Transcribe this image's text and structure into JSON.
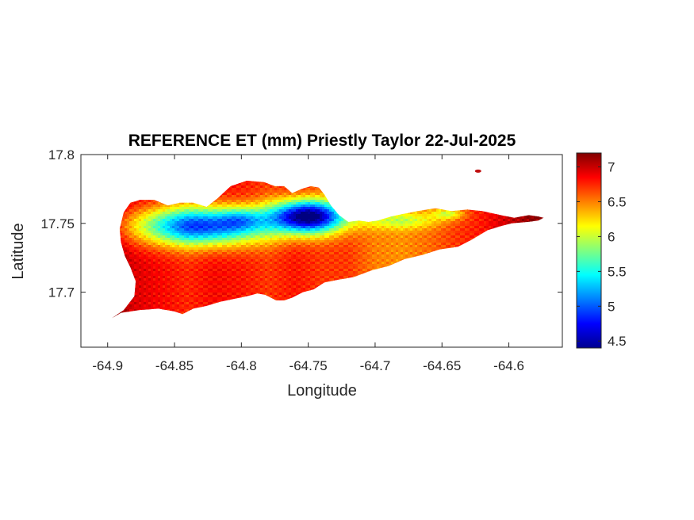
{
  "chart_data": {
    "type": "heatmap",
    "title": "REFERENCE ET (mm) Priestly Taylor 22-Jul-2025",
    "xlabel": "Longitude",
    "ylabel": "Latitude",
    "xlim": [
      -64.92,
      -64.56
    ],
    "ylim": [
      17.66,
      17.8
    ],
    "xticks": [
      -64.9,
      -64.85,
      -64.8,
      -64.75,
      -64.7,
      -64.65,
      -64.6
    ],
    "xtick_labels": [
      "-64.9",
      "-64.85",
      "-64.8",
      "-64.75",
      "-64.7",
      "-64.65",
      "-64.6"
    ],
    "yticks": [
      17.7,
      17.75,
      17.8
    ],
    "ytick_labels": [
      "17.7",
      "17.75",
      "17.8"
    ],
    "colorbar": {
      "colormap": "jet",
      "limits": [
        4.4,
        7.2
      ],
      "ticks": [
        4.5,
        5,
        5.5,
        6,
        6.5,
        7
      ],
      "tick_labels": [
        "4.5",
        "5",
        "5.5",
        "6",
        "6.5",
        "7"
      ]
    },
    "grid": false,
    "island_outline": [
      [
        -64.9,
        17.679
      ],
      [
        -64.888,
        17.687
      ],
      [
        -64.88,
        17.697
      ],
      [
        -64.879,
        17.708
      ],
      [
        -64.883,
        17.718
      ],
      [
        -64.887,
        17.726
      ],
      [
        -64.89,
        17.736
      ],
      [
        -64.891,
        17.746
      ],
      [
        -64.888,
        17.758
      ],
      [
        -64.883,
        17.765
      ],
      [
        -64.876,
        17.767
      ],
      [
        -64.865,
        17.767
      ],
      [
        -64.855,
        17.763
      ],
      [
        -64.846,
        17.765
      ],
      [
        -64.836,
        17.765
      ],
      [
        -64.826,
        17.762
      ],
      [
        -64.818,
        17.768
      ],
      [
        -64.808,
        17.777
      ],
      [
        -64.796,
        17.781
      ],
      [
        -64.783,
        17.78
      ],
      [
        -64.775,
        17.777
      ],
      [
        -64.768,
        17.777
      ],
      [
        -64.762,
        17.772
      ],
      [
        -64.755,
        17.775
      ],
      [
        -64.748,
        17.777
      ],
      [
        -64.742,
        17.776
      ],
      [
        -64.738,
        17.771
      ],
      [
        -64.733,
        17.763
      ],
      [
        -64.727,
        17.756
      ],
      [
        -64.72,
        17.751
      ],
      [
        -64.712,
        17.752
      ],
      [
        -64.705,
        17.751
      ],
      [
        -64.698,
        17.752
      ],
      [
        -64.688,
        17.755
      ],
      [
        -64.678,
        17.757
      ],
      [
        -64.668,
        17.759
      ],
      [
        -64.655,
        17.761
      ],
      [
        -64.643,
        17.759
      ],
      [
        -64.631,
        17.76
      ],
      [
        -64.62,
        17.759
      ],
      [
        -64.606,
        17.756
      ],
      [
        -64.596,
        17.754
      ],
      [
        -64.585,
        17.756
      ],
      [
        -64.578,
        17.755
      ],
      [
        -64.574,
        17.754
      ],
      [
        -64.578,
        17.752
      ],
      [
        -64.586,
        17.751
      ],
      [
        -64.598,
        17.75
      ],
      [
        -64.606,
        17.748
      ],
      [
        -64.616,
        17.745
      ],
      [
        -64.628,
        17.738
      ],
      [
        -64.638,
        17.733
      ],
      [
        -64.652,
        17.731
      ],
      [
        -64.665,
        17.727
      ],
      [
        -64.678,
        17.724
      ],
      [
        -64.69,
        17.719
      ],
      [
        -64.702,
        17.716
      ],
      [
        -64.716,
        17.711
      ],
      [
        -64.728,
        17.709
      ],
      [
        -64.738,
        17.707
      ],
      [
        -64.746,
        17.702
      ],
      [
        -64.754,
        17.7
      ],
      [
        -64.762,
        17.696
      ],
      [
        -64.768,
        17.694
      ],
      [
        -64.774,
        17.694
      ],
      [
        -64.782,
        17.698
      ],
      [
        -64.788,
        17.699
      ],
      [
        -64.796,
        17.697
      ],
      [
        -64.806,
        17.695
      ],
      [
        -64.816,
        17.693
      ],
      [
        -64.826,
        17.69
      ],
      [
        -64.836,
        17.688
      ],
      [
        -64.844,
        17.684
      ],
      [
        -64.85,
        17.686
      ],
      [
        -64.862,
        17.688
      ],
      [
        -64.876,
        17.687
      ],
      [
        -64.89,
        17.685
      ],
      [
        -64.897,
        17.681
      ]
    ],
    "islet": {
      "lon": -64.623,
      "lat": 17.788
    },
    "value_field": {
      "base": [
        [
          -64.895,
          7.15
        ],
        [
          -64.88,
          6.95
        ],
        [
          -64.86,
          6.85
        ],
        [
          -64.84,
          6.75
        ],
        [
          -64.82,
          6.85
        ],
        [
          -64.8,
          6.8
        ],
        [
          -64.78,
          6.7
        ],
        [
          -64.76,
          6.8
        ],
        [
          -64.74,
          6.7
        ],
        [
          -64.72,
          6.7
        ],
        [
          -64.7,
          6.5
        ],
        [
          -64.68,
          6.45
        ],
        [
          -64.66,
          6.55
        ],
        [
          -64.64,
          6.7
        ],
        [
          -64.62,
          6.8
        ],
        [
          -64.6,
          7.0
        ],
        [
          -64.585,
          7.15
        ],
        [
          -64.575,
          7.2
        ]
      ],
      "plateau": [
        {
          "lon": -64.83,
          "lat": 17.748,
          "lon_sigma": 0.05,
          "lat_sigma": 0.014,
          "peak": 1.9
        },
        {
          "lon": -64.75,
          "lat": 17.755,
          "lon_sigma": 0.028,
          "lat_sigma": 0.012,
          "peak": 2.4
        },
        {
          "lon": -64.8,
          "lat": 17.753,
          "lon_sigma": 0.016,
          "lat_sigma": 0.008,
          "peak": 0.5
        },
        {
          "lon": -64.68,
          "lat": 17.752,
          "lon_sigma": 0.03,
          "lat_sigma": 0.006,
          "peak": 0.5
        },
        {
          "lon": -64.645,
          "lat": 17.757,
          "lon_sigma": 0.012,
          "lat_sigma": 0.004,
          "peak": 0.6
        }
      ]
    }
  }
}
